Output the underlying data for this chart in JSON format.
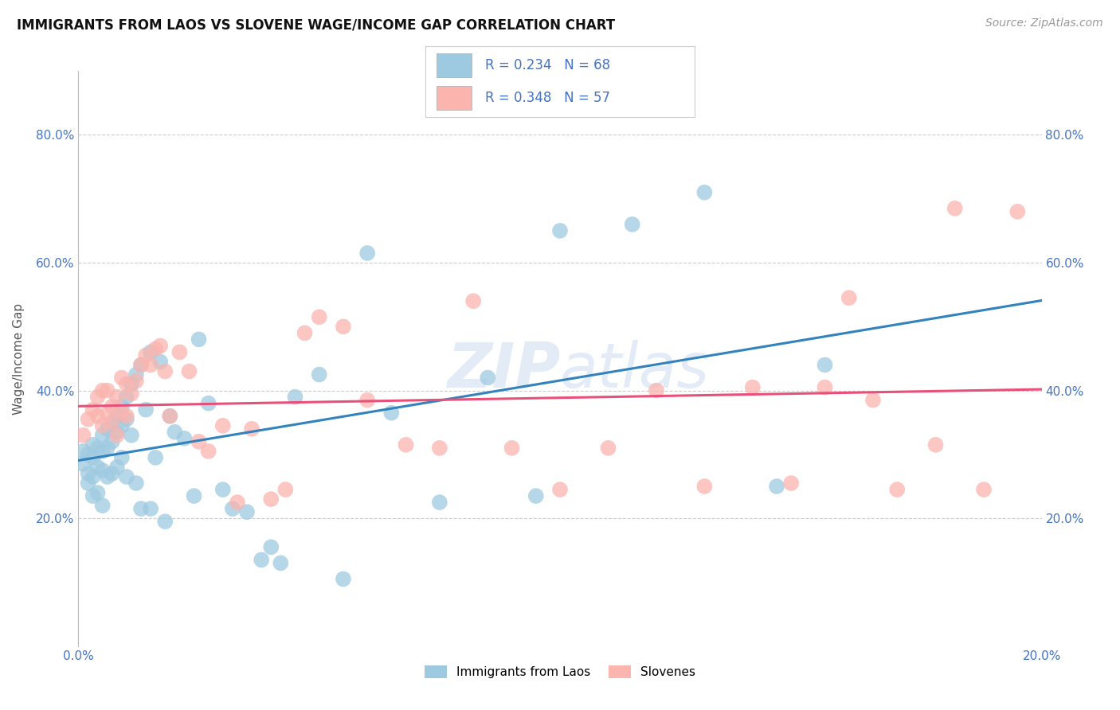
{
  "title": "IMMIGRANTS FROM LAOS VS SLOVENE WAGE/INCOME GAP CORRELATION CHART",
  "source": "Source: ZipAtlas.com",
  "ylabel": "Wage/Income Gap",
  "xlim": [
    0.0,
    0.2
  ],
  "ylim": [
    0.0,
    0.9
  ],
  "x_ticks": [
    0.0,
    0.05,
    0.1,
    0.15,
    0.2
  ],
  "x_ticklabels": [
    "0.0%",
    "",
    "",
    "",
    "20.0%"
  ],
  "y_ticks": [
    0.2,
    0.4,
    0.6,
    0.8
  ],
  "y_ticklabels": [
    "20.0%",
    "40.0%",
    "60.0%",
    "80.0%"
  ],
  "legend_labels": [
    "Immigrants from Laos",
    "Slovenes"
  ],
  "R_laos": 0.234,
  "N_laos": 68,
  "R_slovene": 0.348,
  "N_slovene": 57,
  "color_laos": "#9ecae1",
  "color_slovene": "#fbb4ae",
  "line_color_laos": "#3182bd",
  "line_color_slovene": "#e8507a",
  "background_color": "#ffffff",
  "scatter_laos_x": [
    0.001,
    0.001,
    0.002,
    0.002,
    0.002,
    0.003,
    0.003,
    0.003,
    0.003,
    0.004,
    0.004,
    0.004,
    0.005,
    0.005,
    0.005,
    0.005,
    0.006,
    0.006,
    0.006,
    0.007,
    0.007,
    0.007,
    0.008,
    0.008,
    0.008,
    0.009,
    0.009,
    0.009,
    0.01,
    0.01,
    0.01,
    0.011,
    0.011,
    0.012,
    0.012,
    0.013,
    0.013,
    0.014,
    0.015,
    0.015,
    0.016,
    0.017,
    0.018,
    0.019,
    0.02,
    0.022,
    0.024,
    0.025,
    0.027,
    0.03,
    0.032,
    0.035,
    0.038,
    0.04,
    0.042,
    0.045,
    0.05,
    0.055,
    0.06,
    0.065,
    0.075,
    0.085,
    0.095,
    0.1,
    0.115,
    0.13,
    0.145,
    0.155
  ],
  "scatter_laos_y": [
    0.305,
    0.285,
    0.3,
    0.27,
    0.255,
    0.315,
    0.295,
    0.265,
    0.235,
    0.31,
    0.28,
    0.24,
    0.33,
    0.305,
    0.275,
    0.22,
    0.34,
    0.31,
    0.265,
    0.35,
    0.32,
    0.27,
    0.36,
    0.335,
    0.28,
    0.375,
    0.345,
    0.295,
    0.39,
    0.355,
    0.265,
    0.41,
    0.33,
    0.425,
    0.255,
    0.44,
    0.215,
    0.37,
    0.46,
    0.215,
    0.295,
    0.445,
    0.195,
    0.36,
    0.335,
    0.325,
    0.235,
    0.48,
    0.38,
    0.245,
    0.215,
    0.21,
    0.135,
    0.155,
    0.13,
    0.39,
    0.425,
    0.105,
    0.615,
    0.365,
    0.225,
    0.42,
    0.235,
    0.65,
    0.66,
    0.71,
    0.25,
    0.44
  ],
  "scatter_slovene_x": [
    0.001,
    0.002,
    0.003,
    0.004,
    0.004,
    0.005,
    0.005,
    0.006,
    0.006,
    0.007,
    0.007,
    0.008,
    0.008,
    0.009,
    0.009,
    0.01,
    0.01,
    0.011,
    0.012,
    0.013,
    0.014,
    0.015,
    0.016,
    0.017,
    0.018,
    0.019,
    0.021,
    0.023,
    0.025,
    0.027,
    0.03,
    0.033,
    0.036,
    0.04,
    0.043,
    0.047,
    0.05,
    0.055,
    0.06,
    0.068,
    0.075,
    0.082,
    0.09,
    0.1,
    0.11,
    0.12,
    0.13,
    0.14,
    0.148,
    0.155,
    0.16,
    0.165,
    0.17,
    0.178,
    0.182,
    0.188,
    0.195
  ],
  "scatter_slovene_y": [
    0.33,
    0.355,
    0.37,
    0.36,
    0.39,
    0.345,
    0.4,
    0.365,
    0.4,
    0.375,
    0.35,
    0.39,
    0.33,
    0.365,
    0.42,
    0.36,
    0.41,
    0.395,
    0.415,
    0.44,
    0.455,
    0.44,
    0.465,
    0.47,
    0.43,
    0.36,
    0.46,
    0.43,
    0.32,
    0.305,
    0.345,
    0.225,
    0.34,
    0.23,
    0.245,
    0.49,
    0.515,
    0.5,
    0.385,
    0.315,
    0.31,
    0.54,
    0.31,
    0.245,
    0.31,
    0.4,
    0.25,
    0.405,
    0.255,
    0.405,
    0.545,
    0.385,
    0.245,
    0.315,
    0.685,
    0.245,
    0.68
  ]
}
